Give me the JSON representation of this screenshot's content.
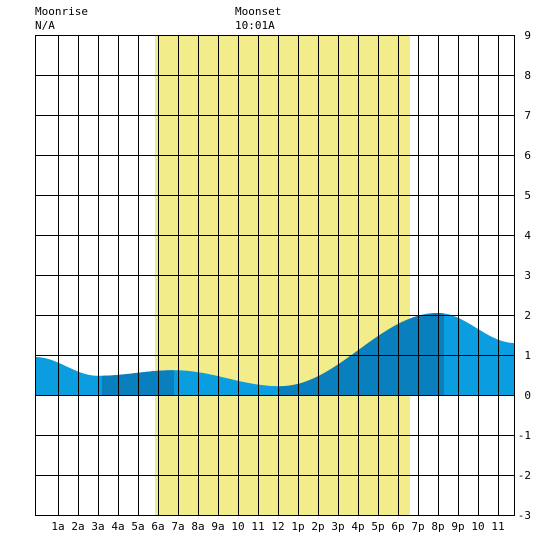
{
  "moonrise": {
    "label": "Moonrise",
    "value": "N/A"
  },
  "moonset": {
    "label": "Moonset",
    "value": "10:01A"
  },
  "colors": {
    "daylight": "#f3ec8a",
    "tide_light": "#0a9de0",
    "tide_dark": "#0a7fbd",
    "grid": "#000000",
    "background": "#ffffff"
  },
  "chart_data": {
    "type": "area",
    "x_unit": "hour of day",
    "xlim": [
      -0.15,
      23.85
    ],
    "ylim": [
      -3,
      9
    ],
    "x_tick_labels": [
      "1a",
      "2a",
      "3a",
      "4a",
      "5a",
      "6a",
      "7a",
      "8a",
      "9a",
      "10",
      "11",
      "12",
      "1p",
      "2p",
      "3p",
      "4p",
      "5p",
      "6p",
      "7p",
      "8p",
      "9p",
      "10",
      "11"
    ],
    "x_tick_hours": [
      1,
      2,
      3,
      4,
      5,
      6,
      7,
      8,
      9,
      10,
      11,
      12,
      13,
      14,
      15,
      16,
      17,
      18,
      19,
      20,
      21,
      22,
      23
    ],
    "y_ticks": [
      -3,
      -2,
      -1,
      0,
      1,
      2,
      3,
      4,
      5,
      6,
      7,
      8,
      9
    ],
    "daylight_band": {
      "start_hour": 5.85,
      "end_hour": 18.6
    },
    "dark_bands": [
      {
        "start_hour": 3.2,
        "end_hour": 6.8
      },
      {
        "start_hour": 12.0,
        "end_hour": 20.3
      }
    ],
    "tide_extrema": [
      {
        "hour": -0.15,
        "height": 0.95
      },
      {
        "hour": 3.0,
        "height": 0.48
      },
      {
        "hour": 6.8,
        "height": 0.62
      },
      {
        "hour": 12.1,
        "height": 0.22
      },
      {
        "hour": 20.0,
        "height": 2.05
      },
      {
        "hour": 23.85,
        "height": 1.3
      }
    ]
  }
}
